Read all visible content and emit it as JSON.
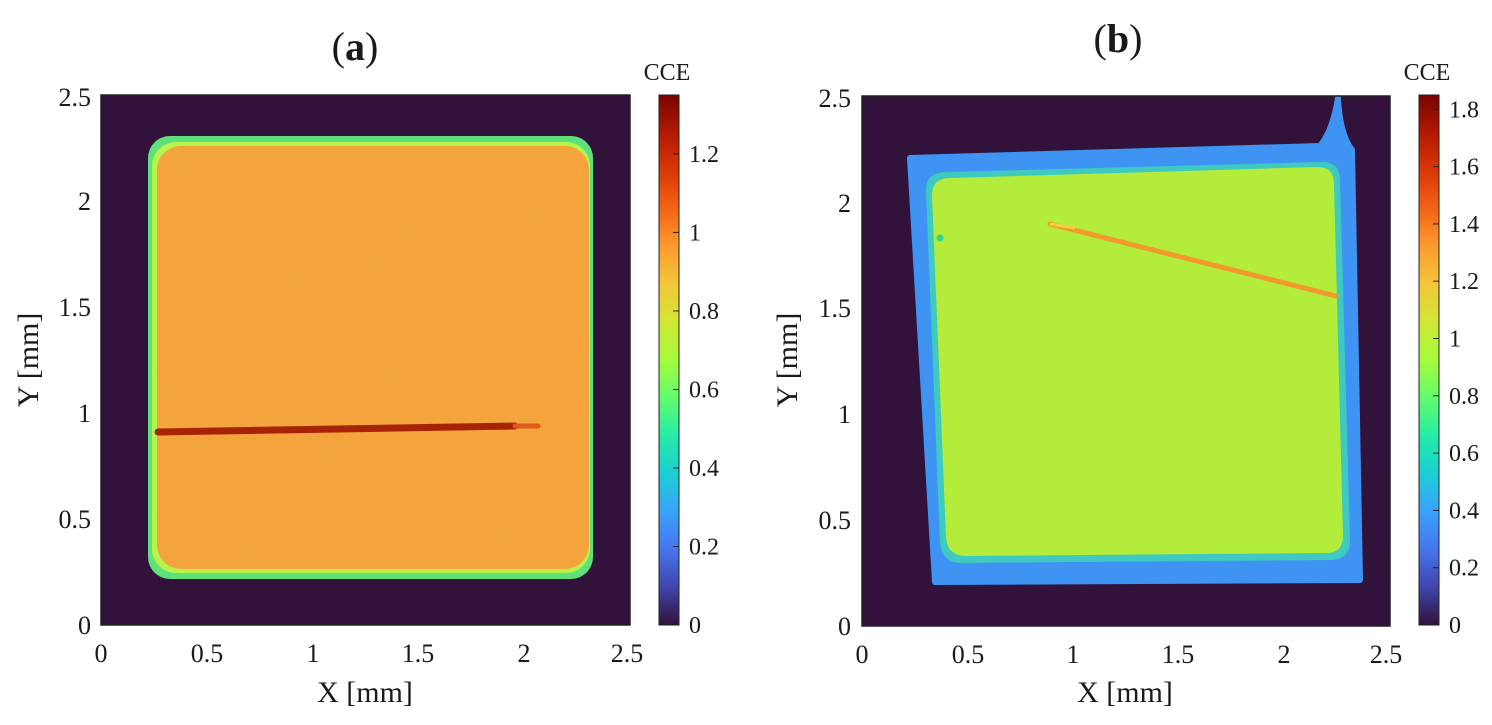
{
  "chart_data": [
    {
      "type": "heatmap",
      "panel_label": "(a)",
      "title": {
        "open": "(",
        "letter": "a",
        "close": ")"
      },
      "xlabel": "X [mm]",
      "ylabel": "Y [mm]",
      "xlim": [
        0,
        2.5
      ],
      "ylim": [
        0,
        2.5
      ],
      "xticks": [
        "0",
        "0.5",
        "1",
        "1.5",
        "2",
        "2.5"
      ],
      "yticks": [
        "0",
        "0.5",
        "1",
        "1.5",
        "2",
        "2.5"
      ],
      "colorbar": {
        "label": "CCE",
        "range": [
          0,
          1.35
        ],
        "ticks": [
          "0",
          "0.2",
          "0.4",
          "0.6",
          "0.8",
          "1",
          "1.2"
        ],
        "tick_values": [
          0,
          0.2,
          0.4,
          0.6,
          0.8,
          1.0,
          1.2
        ],
        "colormap": "turbo"
      },
      "background_value": 0,
      "regions": [
        {
          "name": "detector-body",
          "shape": "rounded-square",
          "x": [
            0.25,
            2.33
          ],
          "y": [
            0.22,
            2.31
          ],
          "edge_value": 0.55,
          "interior_value": 1.07
        },
        {
          "name": "defect-line",
          "shape": "line",
          "x": [
            0.28,
            2.05
          ],
          "y": [
            0.91,
            0.94
          ],
          "value": 1.3
        }
      ]
    },
    {
      "type": "heatmap",
      "panel_label": "(b)",
      "title": {
        "open": "(",
        "letter": "b",
        "close": ")"
      },
      "xlabel": "X [mm]",
      "ylabel": "Y [mm]",
      "xlim": [
        0,
        2.5
      ],
      "ylim": [
        0,
        2.5
      ],
      "xticks": [
        "0",
        "0.5",
        "1",
        "1.5",
        "2",
        "2.5"
      ],
      "yticks": [
        "0",
        "0.5",
        "1",
        "1.5",
        "2",
        "2.5"
      ],
      "colorbar": {
        "label": "CCE",
        "range": [
          0,
          1.85
        ],
        "ticks": [
          "0",
          "0.2",
          "0.4",
          "0.6",
          "0.8",
          "1",
          "1.2",
          "1.4",
          "1.6",
          "1.8"
        ],
        "tick_values": [
          0,
          0.2,
          0.4,
          0.6,
          0.8,
          1.0,
          1.2,
          1.4,
          1.6,
          1.8
        ],
        "colormap": "turbo"
      },
      "background_value": 0,
      "regions": [
        {
          "name": "detector-body",
          "shape": "rotated-rounded-square",
          "corners": [
            [
              0.22,
              2.18
            ],
            [
              2.3,
              2.3
            ],
            [
              2.37,
              0.22
            ],
            [
              0.33,
              0.2
            ]
          ],
          "edge_value": 0.4,
          "interior_value": 0.95
        },
        {
          "name": "defect-line",
          "shape": "line",
          "x": [
            0.9,
            2.25
          ],
          "y": [
            1.9,
            1.56
          ],
          "value": 1.3
        }
      ]
    }
  ]
}
